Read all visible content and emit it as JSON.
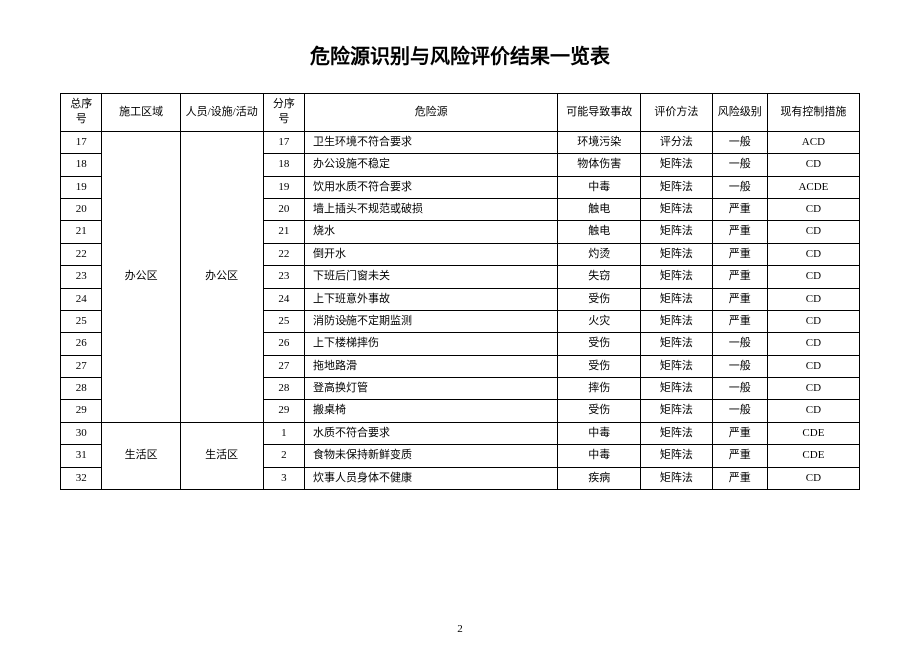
{
  "title": "危险源识别与风险评价结果一览表",
  "columns": [
    "总序号",
    "施工区域",
    "人员/设施/活动",
    "分序号",
    "危险源",
    "可能导致事故",
    "评价方法",
    "风险级别",
    "现有控制措施"
  ],
  "groups": [
    {
      "area": "办公区",
      "person": "办公区",
      "rows": [
        {
          "seq": "17",
          "sub": "17",
          "hazard": "卫生环境不符合要求",
          "result": "环境污染",
          "method": "评分法",
          "level": "一般",
          "control": "ACD"
        },
        {
          "seq": "18",
          "sub": "18",
          "hazard": "办公设施不稳定",
          "result": "物体伤害",
          "method": "矩阵法",
          "level": "一般",
          "control": "CD"
        },
        {
          "seq": "19",
          "sub": "19",
          "hazard": "饮用水质不符合要求",
          "result": "中毒",
          "method": "矩阵法",
          "level": "一般",
          "control": "ACDE"
        },
        {
          "seq": "20",
          "sub": "20",
          "hazard": "墙上插头不规范或破损",
          "result": "触电",
          "method": "矩阵法",
          "level": "严重",
          "control": "CD"
        },
        {
          "seq": "21",
          "sub": "21",
          "hazard": "烧水",
          "result": "触电",
          "method": "矩阵法",
          "level": "严重",
          "control": "CD"
        },
        {
          "seq": "22",
          "sub": "22",
          "hazard": "倒开水",
          "result": "灼烫",
          "method": "矩阵法",
          "level": "严重",
          "control": "CD"
        },
        {
          "seq": "23",
          "sub": "23",
          "hazard": "下班后门窗未关",
          "result": "失窃",
          "method": "矩阵法",
          "level": "严重",
          "control": "CD"
        },
        {
          "seq": "24",
          "sub": "24",
          "hazard": "上下班意外事故",
          "result": "受伤",
          "method": "矩阵法",
          "level": "严重",
          "control": "CD"
        },
        {
          "seq": "25",
          "sub": "25",
          "hazard": "消防设施不定期监测",
          "result": "火灾",
          "method": "矩阵法",
          "level": "严重",
          "control": "CD"
        },
        {
          "seq": "26",
          "sub": "26",
          "hazard": "上下楼梯摔伤",
          "result": "受伤",
          "method": "矩阵法",
          "level": "一般",
          "control": "CD"
        },
        {
          "seq": "27",
          "sub": "27",
          "hazard": "拖地路滑",
          "result": "受伤",
          "method": "矩阵法",
          "level": "一般",
          "control": "CD"
        },
        {
          "seq": "28",
          "sub": "28",
          "hazard": "登高换灯管",
          "result": "摔伤",
          "method": "矩阵法",
          "level": "一般",
          "control": "CD"
        },
        {
          "seq": "29",
          "sub": "29",
          "hazard": "搬桌椅",
          "result": "受伤",
          "method": "矩阵法",
          "level": "一般",
          "control": "CD"
        }
      ]
    },
    {
      "area": "生活区",
      "person": "生活区",
      "rows": [
        {
          "seq": "30",
          "sub": "1",
          "hazard": "水质不符合要求",
          "result": "中毒",
          "method": "矩阵法",
          "level": "严重",
          "control": "CDE"
        },
        {
          "seq": "31",
          "sub": "2",
          "hazard": "食物未保持新鲜变质",
          "result": "中毒",
          "method": "矩阵法",
          "level": "严重",
          "control": "CDE"
        },
        {
          "seq": "32",
          "sub": "3",
          "hazard": "炊事人员身体不健康",
          "result": "疾病",
          "method": "矩阵法",
          "level": "严重",
          "control": "CD"
        }
      ]
    }
  ],
  "page_number": "2"
}
